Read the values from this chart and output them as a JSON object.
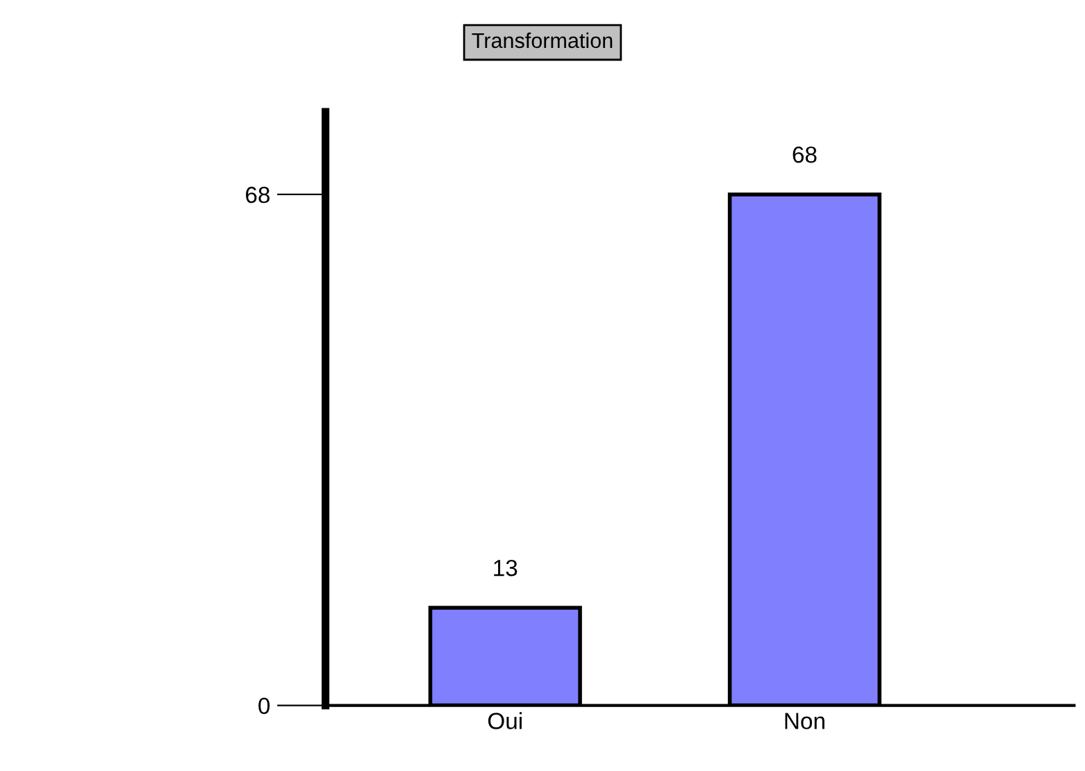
{
  "chart_data": {
    "type": "bar",
    "title": "Transformation",
    "categories": [
      "Oui",
      "Non"
    ],
    "values": [
      13,
      68
    ],
    "color": "#8080ff",
    "ylim": [
      0,
      79
    ],
    "yticks": [
      0,
      68
    ],
    "grid": false,
    "data_labels": true
  }
}
